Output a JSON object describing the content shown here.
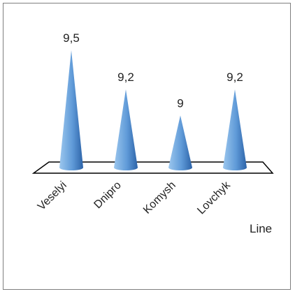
{
  "chart_data": {
    "type": "cone",
    "categories": [
      "Veselyi",
      "Dnipro",
      "Komysh",
      "Lovchyk"
    ],
    "series": [
      {
        "name": "Line",
        "values": [
          9.5,
          9.2,
          9,
          9.2
        ]
      }
    ],
    "data_labels": [
      "9,5",
      "9,2",
      "9",
      "9,2"
    ],
    "legend": {
      "label": "Line",
      "placement": "right"
    },
    "colors": {
      "cone_light": "#9cc7ee",
      "cone_mid": "#5f9ad8",
      "cone_dark": "#2c63a8",
      "floor": "#000000"
    }
  }
}
